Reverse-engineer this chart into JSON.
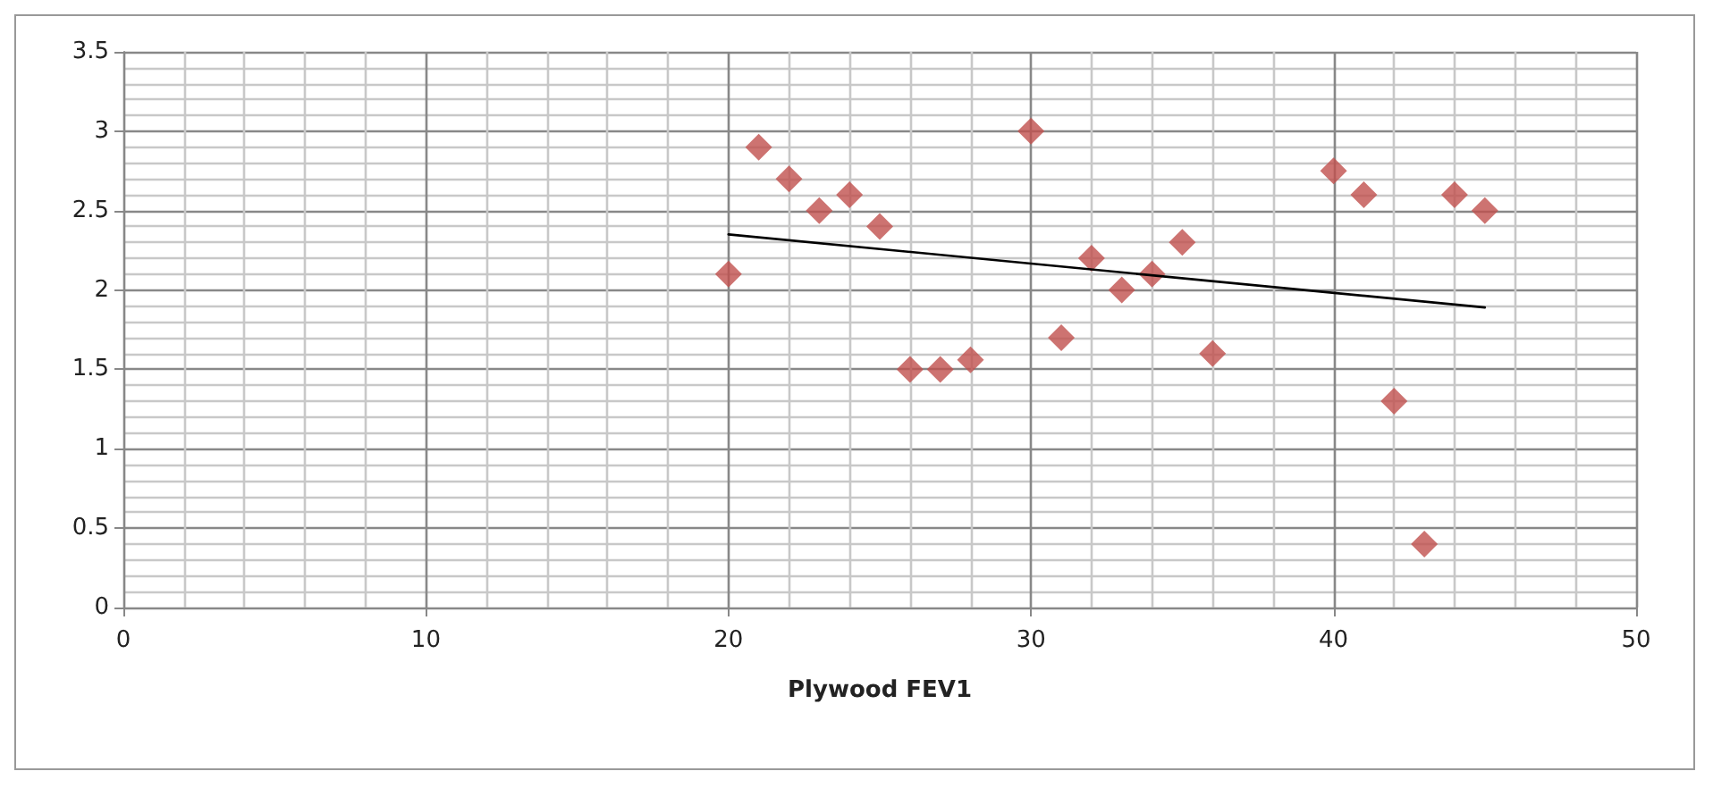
{
  "chart_data": {
    "type": "scatter",
    "xlabel": "Plywood FEV1",
    "xlim": [
      0,
      50
    ],
    "xticks": [
      0,
      10,
      20,
      30,
      40,
      50
    ],
    "ylim": [
      0,
      3.5
    ],
    "yticks": [
      0,
      0.5,
      1,
      1.5,
      2,
      2.5,
      3,
      3.5
    ],
    "grid": true,
    "marker": "diamond",
    "series": [
      {
        "color": "#c0504d",
        "x": [
          20,
          21,
          22,
          23,
          24,
          25,
          26,
          27,
          28,
          30,
          31,
          32,
          33,
          34,
          35,
          36,
          40,
          41,
          42,
          43,
          44,
          45
        ],
        "values": [
          2.1,
          2.9,
          2.7,
          2.5,
          2.6,
          2.4,
          1.5,
          1.5,
          1.56,
          3.0,
          1.7,
          2.2,
          2.0,
          2.1,
          2.3,
          1.6,
          2.75,
          2.6,
          1.3,
          0.4,
          2.6,
          2.5
        ]
      },
      {
        "type": "line",
        "color": "#000000",
        "marker": "none",
        "x": [
          20,
          45
        ],
        "values": [
          2.35,
          1.89
        ]
      }
    ]
  }
}
